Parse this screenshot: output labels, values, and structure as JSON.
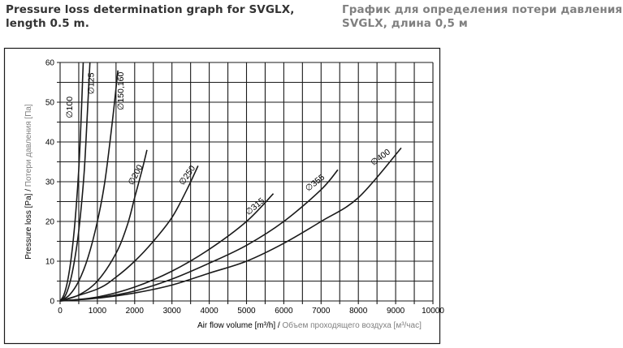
{
  "header": {
    "title_en_line1": "Pressure loss determination graph for SVGLX,",
    "title_en_line2": "length 0.5 m.",
    "title_ru_line1": "График для определения потери давления",
    "title_ru_line2": "SVGLX, длина 0,5 м"
  },
  "colors": {
    "title_en": "#333333",
    "title_ru": "#808080",
    "axis_label_en": "#000000",
    "axis_label_ru": "#808080",
    "lines": "#1a1a1a"
  },
  "chart_data": {
    "type": "line",
    "title": "Pressure loss determination graph for SVGLX, length 0.5 m.",
    "xlabel_en": "Air flow volume [m³/h]",
    "xlabel_ru": "Объем проходящего воздуха [м³/час]",
    "xlabel_sep": " / ",
    "ylabel_en": "Pressure loss [Pa]",
    "ylabel_ru": "Потери давления [Па]",
    "ylabel_sep": " / ",
    "xlim": [
      0,
      10000
    ],
    "ylim": [
      0,
      60
    ],
    "x_ticks": [
      0,
      1000,
      2000,
      3000,
      4000,
      5000,
      6000,
      7000,
      8000,
      9000,
      10000
    ],
    "y_ticks": [
      0,
      10,
      20,
      30,
      40,
      50,
      60
    ],
    "x_grid_step": 500,
    "y_grid_step": 5,
    "grid": true,
    "legend": "inline-labels",
    "series": [
      {
        "name": "Ø100",
        "label": "∅100",
        "x": [
          0,
          100,
          200,
          300,
          400,
          500,
          560,
          620
        ],
        "y": [
          0,
          1.5,
          5,
          11,
          20,
          33,
          45,
          60
        ]
      },
      {
        "name": "Ø125",
        "label": "∅125",
        "x": [
          0,
          150,
          300,
          450,
          550,
          650,
          730,
          800
        ],
        "y": [
          0,
          1.5,
          6,
          14,
          22,
          33,
          47,
          60
        ]
      },
      {
        "name": "Ø150,160",
        "label": "∅150,160",
        "x": [
          0,
          250,
          500,
          750,
          1000,
          1200,
          1400,
          1550
        ],
        "y": [
          0,
          1.5,
          5,
          11,
          20,
          30,
          45,
          58
        ]
      },
      {
        "name": "Ø200",
        "label": "∅200",
        "x": [
          0,
          500,
          1000,
          1500,
          1800,
          2000,
          2200,
          2330
        ],
        "y": [
          0,
          1.5,
          5,
          12,
          19,
          26,
          33,
          38
        ]
      },
      {
        "name": "Ø250",
        "label": "∅250",
        "x": [
          0,
          1000,
          1500,
          2000,
          2500,
          3000,
          3400,
          3700
        ],
        "y": [
          0,
          3,
          6,
          10,
          15,
          21,
          28,
          34
        ]
      },
      {
        "name": "Ø315",
        "label": "∅315",
        "x": [
          0,
          1000,
          2000,
          3000,
          4000,
          5000,
          5720
        ],
        "y": [
          0,
          1,
          3.5,
          7.5,
          13,
          20,
          27
        ]
      },
      {
        "name": "Ø355",
        "label": "∅355",
        "x": [
          0,
          1000,
          2000,
          3000,
          4000,
          5000,
          6000,
          7000,
          7450
        ],
        "y": [
          0,
          0.8,
          2.5,
          5.5,
          9.5,
          14,
          20,
          28,
          33
        ]
      },
      {
        "name": "Ø400",
        "label": "∅400",
        "x": [
          0,
          1000,
          2000,
          3000,
          4000,
          5000,
          6000,
          7000,
          8000,
          9150
        ],
        "y": [
          0,
          0.7,
          2,
          4,
          7,
          10,
          14.5,
          20,
          26,
          38.5
        ]
      }
    ]
  }
}
